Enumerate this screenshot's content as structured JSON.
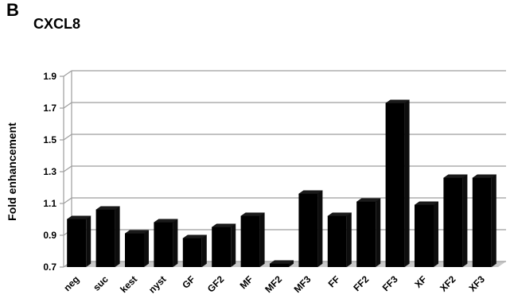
{
  "panel_letter": "B",
  "chart_data": {
    "type": "bar",
    "title": "CXCL8",
    "xlabel": "",
    "ylabel": "Fold enhancement",
    "ylim": [
      0.7,
      1.9
    ],
    "yticks": [
      "0.7",
      "0.9",
      "1.1",
      "1.3",
      "1.5",
      "1.7",
      "1.9"
    ],
    "grid": true,
    "categories": [
      "neg",
      "suc",
      "kest",
      "nyst",
      "GF",
      "GF2",
      "MF",
      "MF2",
      "MF3",
      "FF",
      "FF2",
      "FF3",
      "XF",
      "XF2",
      "XF3"
    ],
    "values": [
      1.0,
      1.06,
      0.91,
      0.98,
      0.88,
      0.95,
      1.02,
      0.72,
      1.16,
      1.02,
      1.11,
      1.73,
      1.09,
      1.26,
      1.26
    ],
    "colors": {
      "bar": "#000000",
      "floor": "#c8c8c8",
      "grid": "#9e9e9e"
    }
  }
}
